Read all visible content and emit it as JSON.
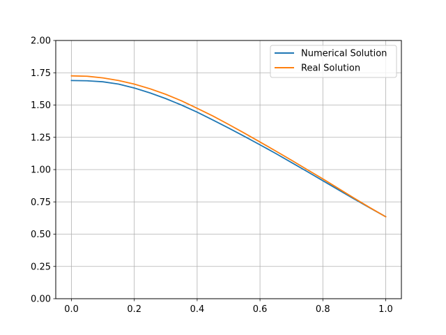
{
  "chart_data": {
    "type": "line",
    "title": "",
    "xlabel": "",
    "ylabel": "",
    "xlim": [
      -0.05,
      1.05
    ],
    "ylim": [
      0.0,
      2.0
    ],
    "xticks": [
      "0.0",
      "0.2",
      "0.4",
      "0.6",
      "0.8",
      "1.0"
    ],
    "xtick_values": [
      0.0,
      0.2,
      0.4,
      0.6,
      0.8,
      1.0
    ],
    "yticks": [
      "0.00",
      "0.25",
      "0.50",
      "0.75",
      "1.00",
      "1.25",
      "1.50",
      "1.75",
      "2.00"
    ],
    "ytick_values": [
      0.0,
      0.25,
      0.5,
      0.75,
      1.0,
      1.25,
      1.5,
      1.75,
      2.0
    ],
    "grid": true,
    "legend_position": "upper right",
    "x": [
      0.0,
      0.05,
      0.1,
      0.15,
      0.2,
      0.25,
      0.3,
      0.35,
      0.4,
      0.45,
      0.5,
      0.55,
      0.6,
      0.65,
      0.7,
      0.75,
      0.8,
      0.85,
      0.9,
      0.95,
      1.0
    ],
    "series": [
      {
        "name": "Numerical Solution",
        "color": "#1f77b4",
        "values": [
          1.69,
          1.688,
          1.68,
          1.662,
          1.632,
          1.594,
          1.55,
          1.5,
          1.445,
          1.384,
          1.322,
          1.258,
          1.192,
          1.125,
          1.055,
          0.985,
          0.914,
          0.843,
          0.772,
          0.703,
          0.635
        ]
      },
      {
        "name": "Real Solution",
        "color": "#ff7f0e",
        "values": [
          1.726,
          1.723,
          1.71,
          1.69,
          1.662,
          1.626,
          1.583,
          1.533,
          1.475,
          1.415,
          1.35,
          1.283,
          1.214,
          1.144,
          1.073,
          1.0,
          0.928,
          0.853,
          0.778,
          0.705,
          0.635
        ]
      }
    ]
  }
}
